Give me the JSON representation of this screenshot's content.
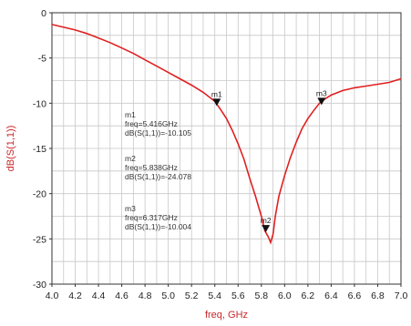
{
  "chart_data": {
    "type": "line",
    "xlabel": "freq, GHz",
    "ylabel": "dB(S(1,1))",
    "xlim": [
      4.0,
      7.0
    ],
    "ylim": [
      -30,
      0
    ],
    "grid": true,
    "x_ticks": [
      "4.0",
      "4.2",
      "4.4",
      "4.6",
      "4.8",
      "5.0",
      "5.2",
      "5.4",
      "5.6",
      "5.8",
      "6.0",
      "6.2",
      "6.4",
      "6.6",
      "6.8",
      "7.0"
    ],
    "y_ticks": [
      "0",
      "-5",
      "-10",
      "-15",
      "-20",
      "-25",
      "-30"
    ],
    "line_color": "#e02020",
    "series": [
      {
        "x": [
          4.0,
          4.1,
          4.2,
          4.3,
          4.4,
          4.5,
          4.6,
          4.7,
          4.8,
          4.9,
          5.0,
          5.1,
          5.2,
          5.3,
          5.4,
          5.45,
          5.5,
          5.55,
          5.6,
          5.65,
          5.7,
          5.75,
          5.8,
          5.83,
          5.86,
          5.88,
          5.9,
          5.92,
          5.95,
          6.0,
          6.05,
          6.1,
          6.15,
          6.2,
          6.25,
          6.3,
          6.35,
          6.4,
          6.5,
          6.6,
          6.7,
          6.8,
          6.9,
          7.0
        ],
        "y": [
          -1.3,
          -1.6,
          -1.9,
          -2.3,
          -2.8,
          -3.3,
          -3.9,
          -4.5,
          -5.2,
          -5.9,
          -6.6,
          -7.3,
          -8.0,
          -8.8,
          -9.8,
          -10.7,
          -11.7,
          -13.0,
          -14.5,
          -16.2,
          -18.3,
          -20.3,
          -22.5,
          -24.1,
          -24.8,
          -25.4,
          -24.5,
          -22.5,
          -20.3,
          -18.0,
          -16.0,
          -14.3,
          -12.8,
          -11.7,
          -10.8,
          -10.0,
          -9.5,
          -9.1,
          -8.6,
          -8.3,
          -8.1,
          -7.9,
          -7.7,
          -7.3
        ]
      }
    ],
    "markers": [
      {
        "id": "m1",
        "x": 5.416,
        "y": -10.105,
        "label": "m1"
      },
      {
        "id": "m2",
        "x": 5.838,
        "y": -24.078,
        "label": "m2"
      },
      {
        "id": "m3",
        "x": 6.317,
        "y": -10.004,
        "label": "m3"
      }
    ],
    "annotations": [
      {
        "name": "m1",
        "lines": [
          "m1",
          "freq=5.416GHz",
          "dB(S(1,1))=-10.105"
        ]
      },
      {
        "name": "m2",
        "lines": [
          "m2",
          "freq=5.838GHz",
          "dB(S(1,1))=-24.078"
        ]
      },
      {
        "name": "m3",
        "lines": [
          "m3",
          "freq=6.317GHz",
          "dB(S(1,1))=-10.004"
        ]
      }
    ]
  }
}
